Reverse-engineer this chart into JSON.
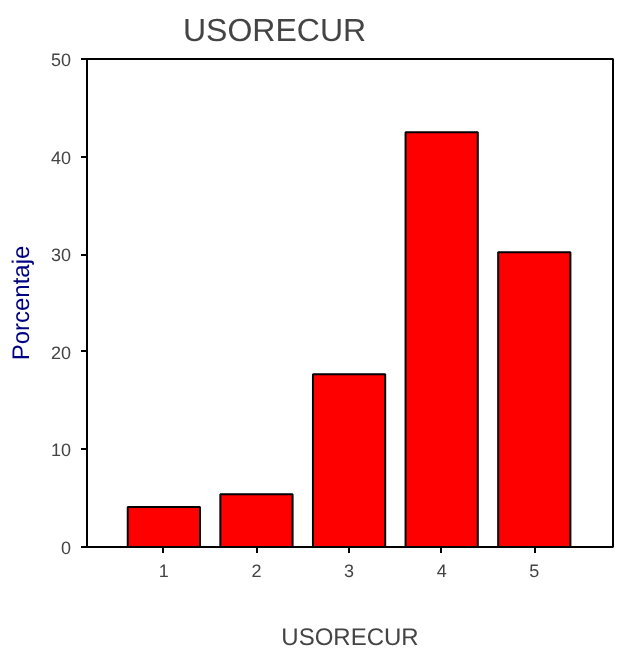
{
  "chart_data": {
    "type": "bar",
    "title": "USORECUR",
    "xlabel": "USORECUR",
    "ylabel": "Porcentaje",
    "categories": [
      "1",
      "2",
      "3",
      "4",
      "5"
    ],
    "values": [
      4.1,
      5.4,
      17.7,
      42.5,
      30.2
    ],
    "color": "#ff0000",
    "ylim": [
      0,
      50
    ],
    "yticks": [
      0,
      10,
      20,
      30,
      40,
      50
    ],
    "grid": false
  }
}
